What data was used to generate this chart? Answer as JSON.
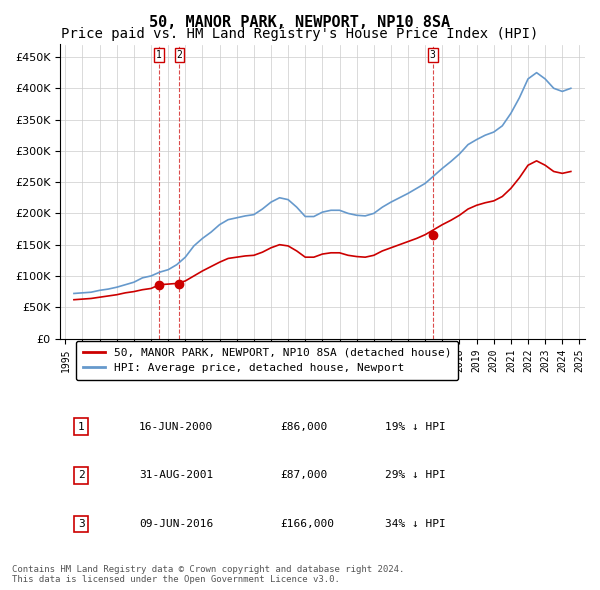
{
  "title": "50, MANOR PARK, NEWPORT, NP10 8SA",
  "subtitle": "Price paid vs. HM Land Registry's House Price Index (HPI)",
  "footer": "Contains HM Land Registry data © Crown copyright and database right 2024.\nThis data is licensed under the Open Government Licence v3.0.",
  "legend_red": "50, MANOR PARK, NEWPORT, NP10 8SA (detached house)",
  "legend_blue": "HPI: Average price, detached house, Newport",
  "transactions": [
    {
      "num": 1,
      "date": "16-JUN-2000",
      "price": "£86,000",
      "hpi": "19% ↓ HPI",
      "year": 2000.46
    },
    {
      "num": 2,
      "date": "31-AUG-2001",
      "price": "£87,000",
      "hpi": "29% ↓ HPI",
      "year": 2001.66
    },
    {
      "num": 3,
      "date": "09-JUN-2016",
      "price": "£166,000",
      "hpi": "34% ↓ HPI",
      "year": 2016.44
    }
  ],
  "transaction_prices": [
    86000,
    87000,
    166000
  ],
  "ylim": [
    0,
    470000
  ],
  "yticks": [
    0,
    50000,
    100000,
    150000,
    200000,
    250000,
    300000,
    350000,
    400000,
    450000
  ],
  "background_color": "#ffffff",
  "grid_color": "#cccccc",
  "red_color": "#cc0000",
  "blue_color": "#6699cc",
  "title_fontsize": 11,
  "subtitle_fontsize": 10,
  "hpi_data": {
    "years": [
      1995.5,
      1996.0,
      1996.5,
      1997.0,
      1997.5,
      1998.0,
      1998.5,
      1999.0,
      1999.5,
      2000.0,
      2000.5,
      2001.0,
      2001.5,
      2002.0,
      2002.5,
      2003.0,
      2003.5,
      2004.0,
      2004.5,
      2005.0,
      2005.5,
      2006.0,
      2006.5,
      2007.0,
      2007.5,
      2008.0,
      2008.5,
      2009.0,
      2009.5,
      2010.0,
      2010.5,
      2011.0,
      2011.5,
      2012.0,
      2012.5,
      2013.0,
      2013.5,
      2014.0,
      2014.5,
      2015.0,
      2015.5,
      2016.0,
      2016.5,
      2017.0,
      2017.5,
      2018.0,
      2018.5,
      2019.0,
      2019.5,
      2020.0,
      2020.5,
      2021.0,
      2021.5,
      2022.0,
      2022.5,
      2023.0,
      2023.5,
      2024.0,
      2024.5
    ],
    "hpi_values": [
      72000,
      73000,
      74000,
      77000,
      79000,
      82000,
      86000,
      90000,
      97000,
      100000,
      106000,
      110000,
      118000,
      130000,
      148000,
      160000,
      170000,
      182000,
      190000,
      193000,
      196000,
      198000,
      207000,
      218000,
      225000,
      222000,
      210000,
      195000,
      195000,
      202000,
      205000,
      205000,
      200000,
      197000,
      196000,
      200000,
      210000,
      218000,
      225000,
      232000,
      240000,
      248000,
      260000,
      272000,
      283000,
      295000,
      310000,
      318000,
      325000,
      330000,
      340000,
      360000,
      385000,
      415000,
      425000,
      415000,
      400000,
      395000,
      400000
    ],
    "red_values": [
      62000,
      63000,
      64000,
      66000,
      68000,
      70000,
      73000,
      75000,
      78000,
      80000,
      86000,
      87000,
      88000,
      92000,
      100000,
      108000,
      115000,
      122000,
      128000,
      130000,
      132000,
      133000,
      138000,
      145000,
      150000,
      148000,
      140000,
      130000,
      130000,
      135000,
      137000,
      137000,
      133000,
      131000,
      130000,
      133000,
      140000,
      145000,
      150000,
      155000,
      160000,
      166000,
      174000,
      182000,
      189000,
      197000,
      207000,
      213000,
      217000,
      220000,
      227000,
      240000,
      257000,
      277000,
      284000,
      277000,
      267000,
      264000,
      267000
    ]
  }
}
